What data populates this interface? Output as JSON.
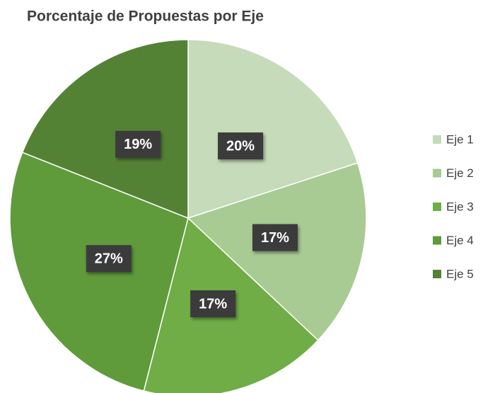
{
  "chart_data": {
    "type": "pie",
    "title": "Porcentaje de Propuestas por Eje",
    "categories": [
      "Eje 1",
      "Eje 2",
      "Eje 3",
      "Eje 4",
      "Eje 5"
    ],
    "values": [
      20,
      17,
      17,
      27,
      19
    ],
    "value_labels": [
      "20%",
      "17%",
      "17%",
      "27%",
      "19%"
    ],
    "colors": [
      "#c5dbb9",
      "#a8ca93",
      "#70ad47",
      "#5f9b3b",
      "#548235"
    ],
    "legend": "right"
  }
}
